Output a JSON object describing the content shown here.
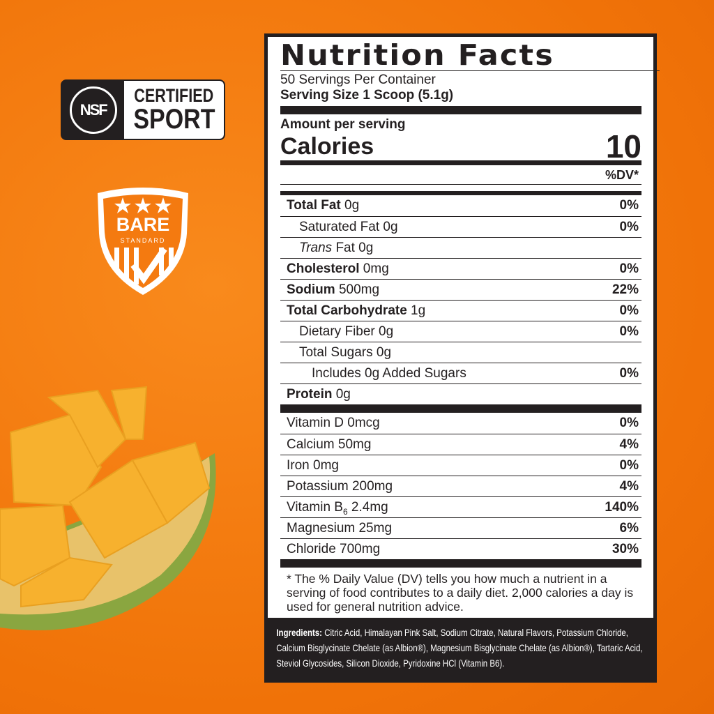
{
  "badges": {
    "nsf": {
      "logo": "NSF",
      "line1": "CERTIFIED",
      "line2": "SPORT"
    },
    "bare": {
      "line1": "BARE",
      "line2": "STANDARD"
    }
  },
  "colors": {
    "background": "#f47a10",
    "label_dark": "#231f20"
  },
  "label": {
    "title": "Nutrition Facts",
    "servings": "50 Servings Per Container",
    "serving_size": "Serving Size 1 Scoop (5.1g)",
    "amount_per_serving": "Amount per serving",
    "calories_label": "Calories",
    "calories_value": "10",
    "dv_header": "%DV*",
    "rows": [
      {
        "bold": "Total Fat",
        "rest": " 0g",
        "dv": "0%"
      },
      {
        "bold": "",
        "rest": "Saturated Fat 0g",
        "dv": "0%"
      },
      {
        "italic": "Trans",
        "rest": " Fat 0g",
        "dv": ""
      },
      {
        "bold": "Cholesterol",
        "rest": " 0mg",
        "dv": "0%"
      },
      {
        "bold": "Sodium",
        "rest": " 500mg",
        "dv": "22%"
      },
      {
        "bold": "Total Carbohydrate",
        "rest": " 1g",
        "dv": "0%"
      },
      {
        "bold": "",
        "rest": "Dietary Fiber 0g",
        "dv": "0%"
      },
      {
        "bold": "",
        "rest": "Total Sugars 0g",
        "dv": ""
      },
      {
        "bold": "",
        "rest": "Includes 0g Added Sugars",
        "dv": "0%"
      },
      {
        "bold": "Protein",
        "rest": " 0g",
        "dv": ""
      }
    ],
    "vitamins": [
      {
        "name": "Vitamin D 0mcg",
        "dv": "0%"
      },
      {
        "name": "Calcium 50mg",
        "dv": "4%"
      },
      {
        "name": "Iron 0mg",
        "dv": "0%"
      },
      {
        "name": "Potassium 200mg",
        "dv": "4%"
      },
      {
        "name": "Vitamin B",
        "sub": "6",
        "rest": " 2.4mg",
        "dv": "140%"
      },
      {
        "name": "Magnesium 25mg",
        "dv": "6%"
      },
      {
        "name": "Chloride 700mg",
        "dv": "30%"
      }
    ],
    "footnote": "* The % Daily Value (DV) tells you how much a nutrient in a serving of food contributes to a daily diet. 2,000 calories a day is used for general nutrition advice.",
    "ingredients_label": "Ingredients:",
    "ingredients": "Citric Acid, Himalayan Pink Salt, Sodium Citrate, Natural Flavors, Potassium Chloride, Calcium Bisglycinate Chelate (as Albion®), Magnesium Bisglycinate Chelate (as Albion®), Tartaric Acid, Steviol Glycosides, Silicon Dioxide, Pyridoxine HCl (Vitamin B6)."
  }
}
